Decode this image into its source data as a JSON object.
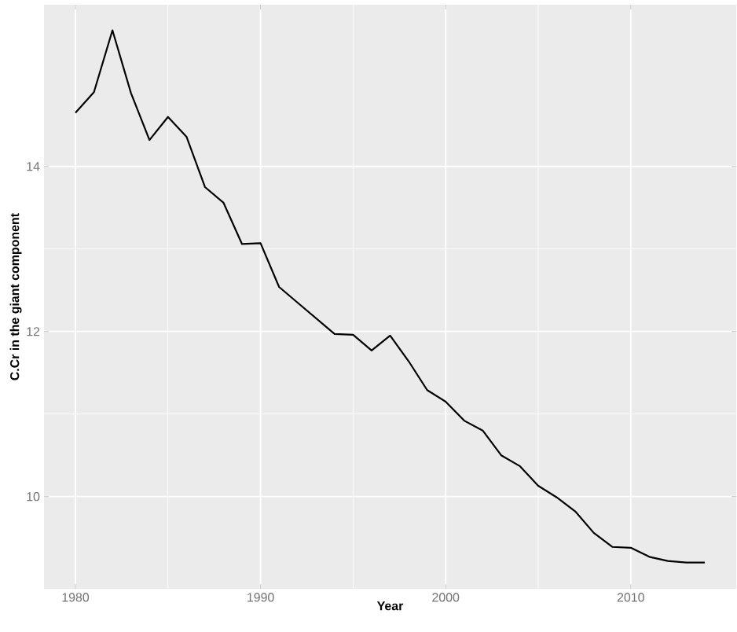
{
  "chart_data": {
    "type": "line",
    "xlabel": "Year",
    "ylabel": "C.Cr in the giant component",
    "x": [
      1980,
      1981,
      1982,
      1983,
      1984,
      1985,
      1986,
      1987,
      1988,
      1989,
      1990,
      1991,
      1992,
      1993,
      1994,
      1995,
      1996,
      1997,
      1998,
      1999,
      2000,
      2001,
      2002,
      2003,
      2004,
      2005,
      2006,
      2007,
      2008,
      2009,
      2010,
      2011,
      2012,
      2013,
      2014
    ],
    "series": [
      {
        "color": "#000000",
        "values": [
          14.65,
          14.9,
          15.65,
          14.89,
          14.32,
          14.6,
          14.36,
          13.75,
          13.56,
          13.06,
          13.07,
          12.54,
          12.35,
          12.16,
          11.97,
          11.96,
          11.77,
          11.95,
          11.64,
          11.29,
          11.15,
          10.92,
          10.8,
          10.5,
          10.37,
          10.13,
          9.99,
          9.82,
          9.56,
          9.39,
          9.38,
          9.27,
          9.22,
          9.2,
          9.2
        ]
      }
    ],
    "xlim": [
      1978.3,
      2015.7
    ],
    "ylim": [
      8.88,
      15.96
    ],
    "xticks": [
      1980,
      1990,
      2000,
      2010
    ],
    "yticks": [
      10,
      12,
      14
    ],
    "grid": true,
    "marker": "none",
    "line_style": "solid"
  }
}
